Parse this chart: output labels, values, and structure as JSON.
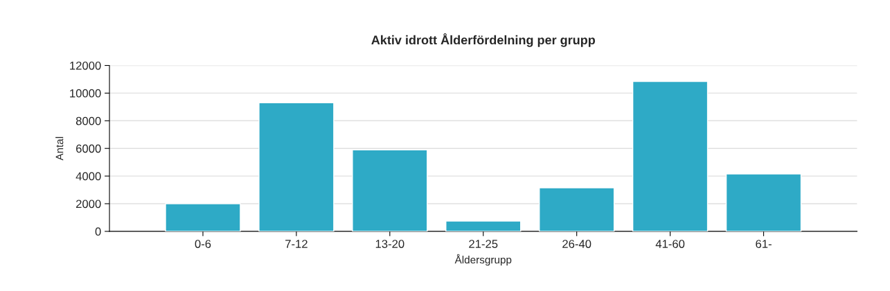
{
  "chart_data": {
    "type": "bar",
    "title": "Aktiv idrott Ålderfördelning per grupp",
    "xlabel": "Åldersgrupp",
    "ylabel": "Antal",
    "categories": [
      "0-6",
      "7-12",
      "13-20",
      "21-25",
      "26-40",
      "41-60",
      "61-"
    ],
    "values": [
      2000,
      9300,
      5900,
      750,
      3150,
      10850,
      4150
    ],
    "color": "#2eaac6",
    "ylim": [
      0,
      12000
    ],
    "yticks": [
      0,
      2000,
      4000,
      6000,
      8000,
      10000,
      12000
    ],
    "grid": "y",
    "legend": false
  }
}
